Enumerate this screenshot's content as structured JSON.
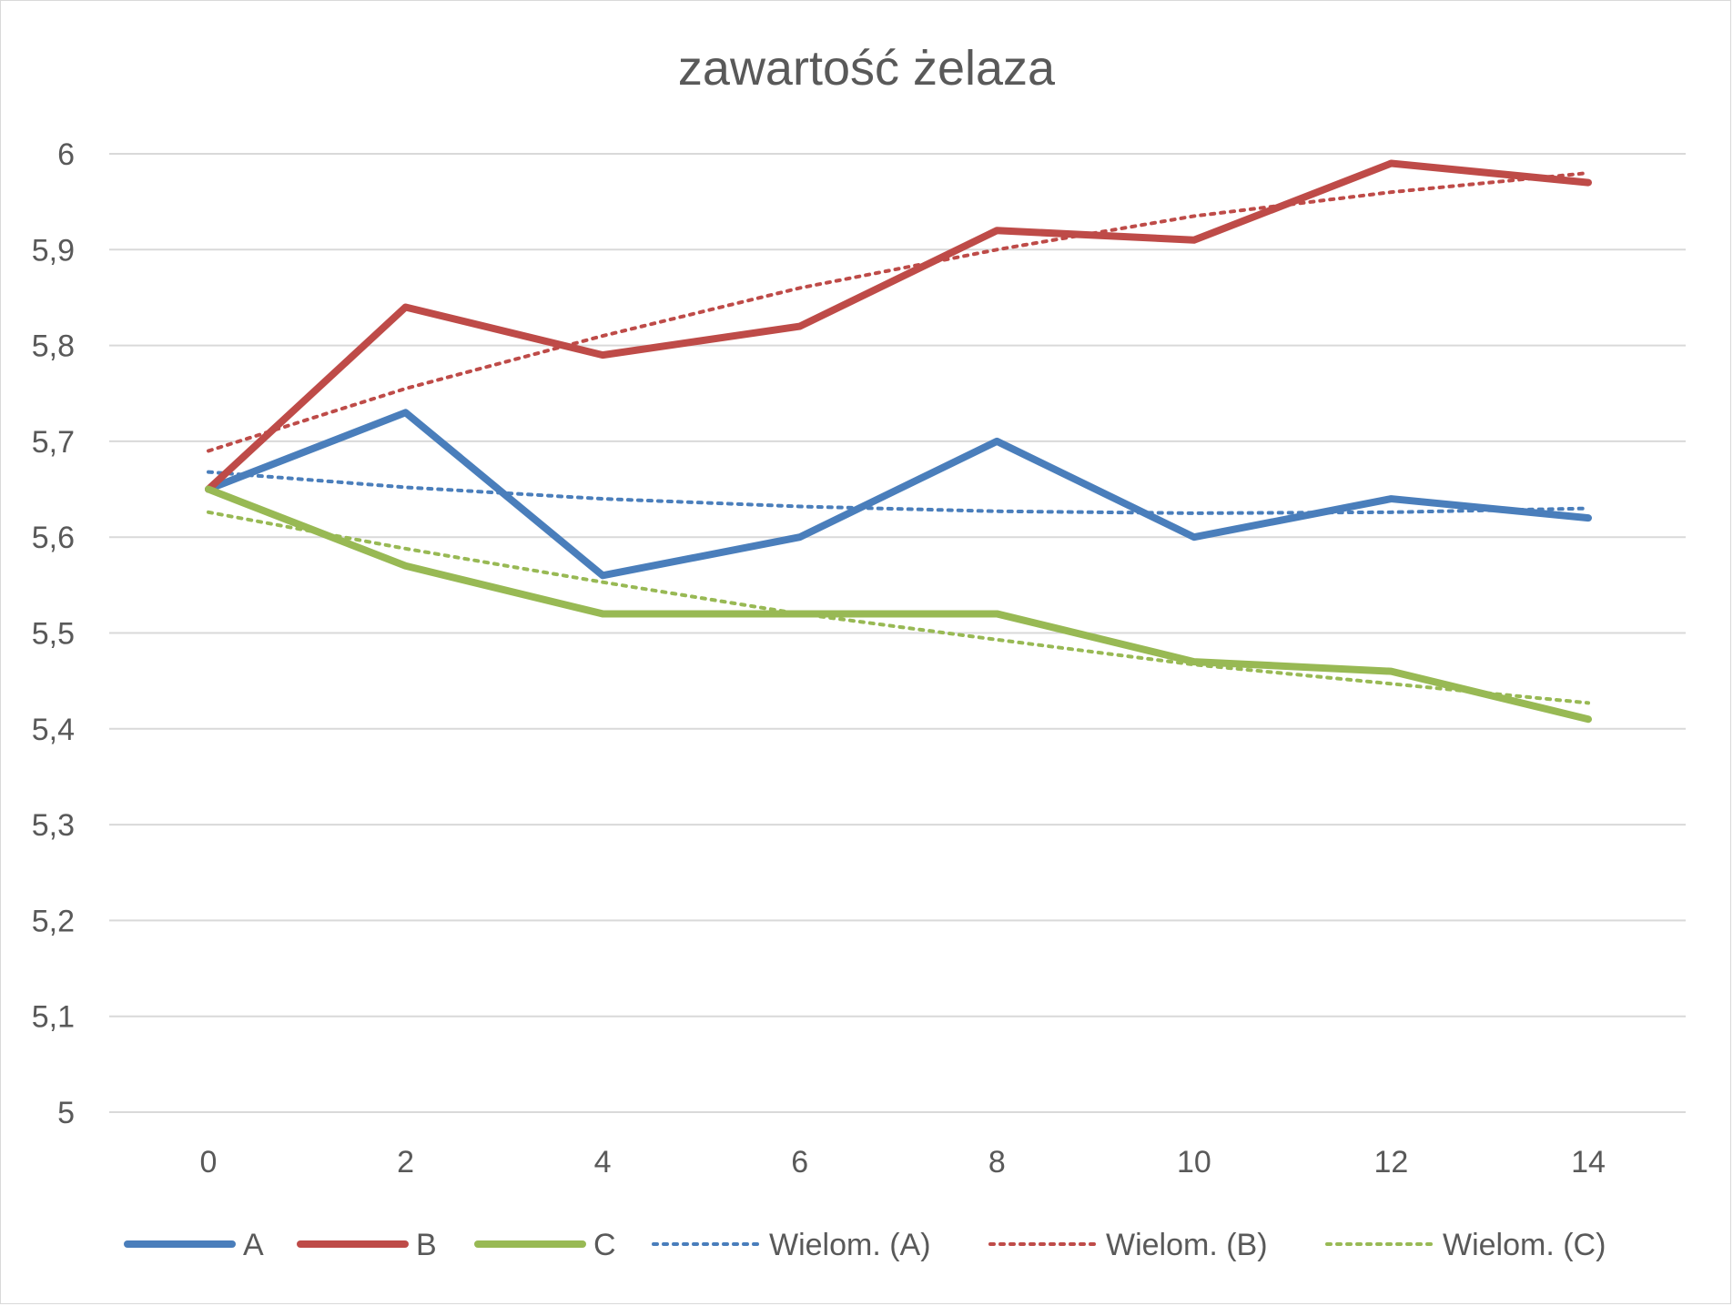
{
  "chart_data": {
    "type": "line",
    "title": "zawartość żelaza",
    "xlabel": "",
    "ylabel": "",
    "x": [
      0,
      2,
      4,
      6,
      8,
      10,
      12,
      14
    ],
    "xtick_labels": [
      "0",
      "2",
      "4",
      "6",
      "8",
      "10",
      "12",
      "14"
    ],
    "ylim": [
      5,
      6
    ],
    "ytick_values": [
      5,
      5.1,
      5.2,
      5.3,
      5.4,
      5.5,
      5.6,
      5.7,
      5.8,
      5.9,
      6
    ],
    "ytick_labels": [
      "5",
      "5,1",
      "5,2",
      "5,3",
      "5,4",
      "5,5",
      "5,6",
      "5,7",
      "5,8",
      "5,9",
      "6"
    ],
    "grid": "horizontal",
    "legend_position": "bottom",
    "series": [
      {
        "name": "A",
        "color": "#4a7ebb",
        "style": "solid",
        "values": [
          5.65,
          5.73,
          5.56,
          5.6,
          5.7,
          5.6,
          5.64,
          5.62
        ]
      },
      {
        "name": "B",
        "color": "#be4b48",
        "style": "solid",
        "values": [
          5.65,
          5.84,
          5.79,
          5.82,
          5.92,
          5.91,
          5.99,
          5.97
        ]
      },
      {
        "name": "C",
        "color": "#98b954",
        "style": "solid",
        "values": [
          5.65,
          5.57,
          5.52,
          5.52,
          5.52,
          5.47,
          5.46,
          5.41
        ]
      }
    ],
    "trendlines": [
      {
        "name": "Wielom. (A)",
        "color": "#4a7ebb",
        "style": "dotted",
        "values": [
          5.668,
          5.652,
          5.64,
          5.632,
          5.627,
          5.625,
          5.626,
          5.63
        ]
      },
      {
        "name": "Wielom. (B)",
        "color": "#be4b48",
        "style": "dotted",
        "values": [
          5.69,
          5.755,
          5.81,
          5.86,
          5.9,
          5.935,
          5.96,
          5.98
        ]
      },
      {
        "name": "Wielom. (C)",
        "color": "#98b954",
        "style": "dotted",
        "values": [
          5.626,
          5.588,
          5.553,
          5.52,
          5.493,
          5.467,
          5.447,
          5.427
        ]
      }
    ]
  }
}
